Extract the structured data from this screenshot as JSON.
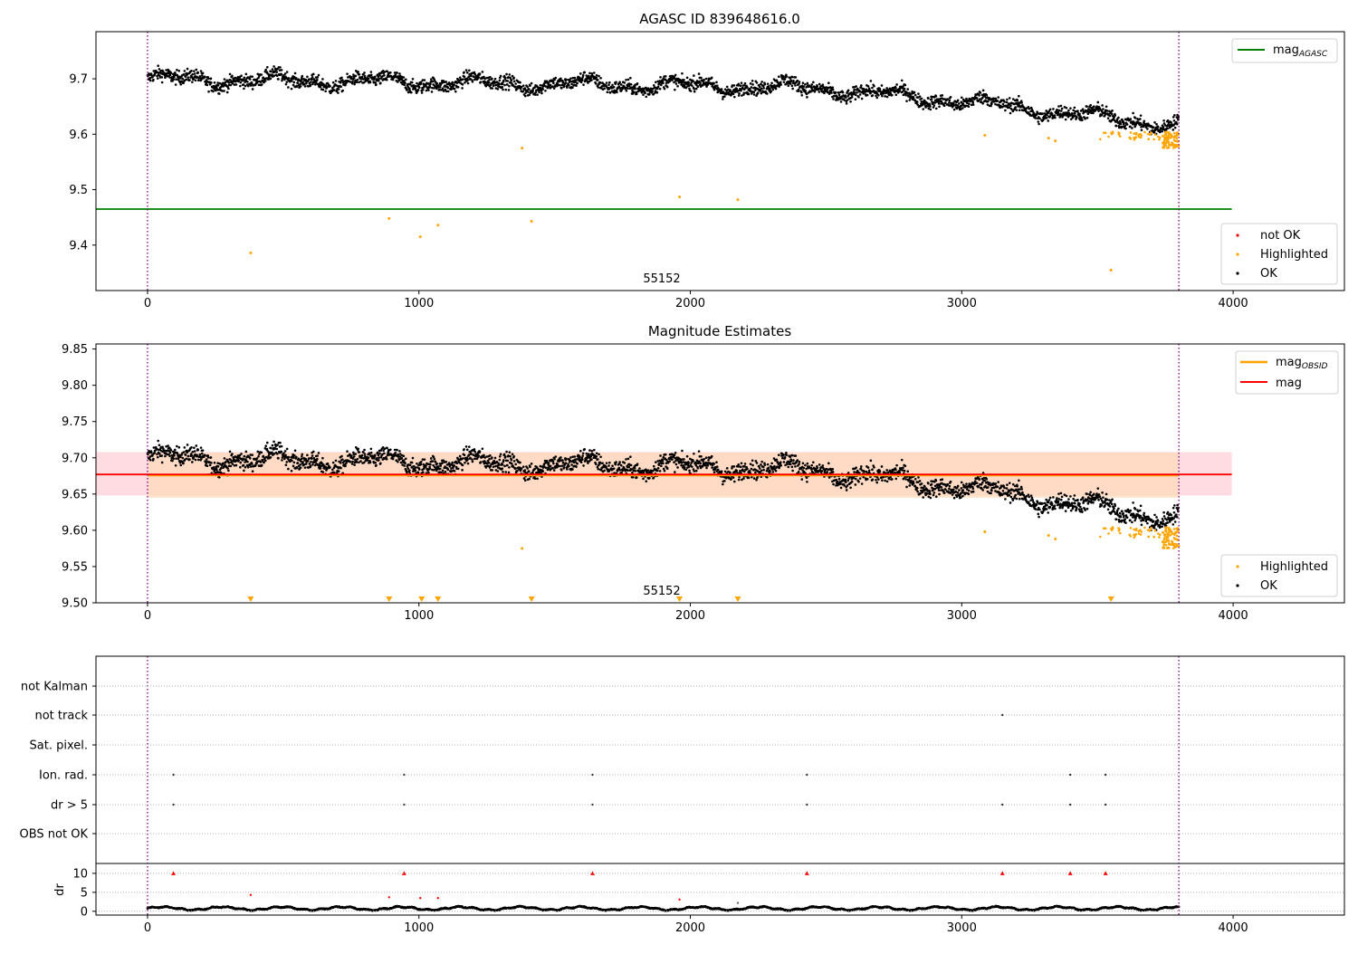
{
  "colors": {
    "ok": "#000000",
    "highlighted": "#FFA500",
    "not_ok": "#FF0000",
    "mag_agasc": "#008000",
    "mag_obsid": "#FFA500",
    "mag": "#FF0000",
    "band_outer": "#FFC0CB",
    "band_inner": "#FFDAB9",
    "obsid_boundary": "#800080",
    "grid": "#b0b0b0"
  },
  "chart_data": [
    {
      "type": "scatter",
      "title": "AGASC ID 839648616.0",
      "xlim": [
        -190,
        4410
      ],
      "ylim": [
        9.318,
        9.785
      ],
      "xticks": [
        0,
        1000,
        2000,
        3000,
        4000
      ],
      "yticks": [
        9.4,
        9.5,
        9.6,
        9.7
      ],
      "obsid_label": "55152",
      "obsid_boundaries": [
        0,
        3800
      ],
      "series": [
        {
          "name": "not OK",
          "values": []
        },
        {
          "name": "Highlighted",
          "points": [
            [
              380,
              9.386
            ],
            [
              890,
              9.448
            ],
            [
              1005,
              9.415
            ],
            [
              1070,
              9.436
            ],
            [
              1380,
              9.575
            ],
            [
              1415,
              9.443
            ],
            [
              1960,
              9.487
            ],
            [
              2175,
              9.482
            ],
            [
              3085,
              9.598
            ],
            [
              3320,
              9.593
            ],
            [
              3345,
              9.588
            ],
            [
              3550,
              9.355
            ]
          ]
        },
        {
          "name": "OK",
          "values": []
        }
      ],
      "hlines": [
        {
          "name": "mag_AGASC",
          "y": 9.465,
          "x": [
            -190,
            3995
          ]
        }
      ],
      "legend": [
        "not OK",
        "Highlighted",
        "OK"
      ],
      "legend_lines": [
        "mag_AGASC"
      ],
      "legend_placement": "top-right (lines), bottom-right (points)",
      "grid": false
    },
    {
      "type": "scatter",
      "title": "Magnitude Estimates",
      "xlim": [
        -190,
        4410
      ],
      "ylim": [
        9.5,
        9.857
      ],
      "xticks": [
        0,
        1000,
        2000,
        3000,
        4000
      ],
      "yticks": [
        9.5,
        9.55,
        9.6,
        9.65,
        9.7,
        9.75,
        9.8,
        9.85
      ],
      "obsid_label": "55152",
      "obsid_boundaries": [
        0,
        3800
      ],
      "bands": [
        {
          "name": "mag band",
          "x": [
            -190,
            3995
          ],
          "y": [
            9.648,
            9.708
          ]
        },
        {
          "name": "mag_OBSID band",
          "x": [
            0,
            3800
          ],
          "y": [
            9.645,
            9.707
          ]
        }
      ],
      "hlines": [
        {
          "name": "mag_OBSID",
          "y": 9.676,
          "x": [
            0,
            3800
          ]
        },
        {
          "name": "mag",
          "y": 9.677,
          "x": [
            -190,
            3995
          ]
        }
      ],
      "lower_limit_markers": {
        "name": "Highlighted below range",
        "x": [
          380,
          890,
          1010,
          1070,
          1415,
          1960,
          2175,
          3550
        ]
      },
      "series": [
        {
          "name": "Highlighted",
          "points": [
            [
              1380,
              9.575
            ],
            [
              3085,
              9.598
            ],
            [
              3320,
              9.593
            ],
            [
              3345,
              9.588
            ]
          ]
        },
        {
          "name": "OK",
          "values": []
        }
      ],
      "legend": [
        "Highlighted",
        "OK"
      ],
      "legend_lines": [
        "mag_OBSID",
        "mag"
      ],
      "grid": false
    },
    {
      "type": "scatter",
      "title": "",
      "xlim": [
        -190,
        4410
      ],
      "xticks": [
        0,
        1000,
        2000,
        3000,
        4000
      ],
      "flag_rows": [
        "not Kalman",
        "not track",
        "Sat. pixel.",
        "Ion. rad.",
        "dr > 5",
        "OBS not OK"
      ],
      "flags": {
        "not Kalman": [],
        "not track": [
          3150
        ],
        "Sat. pixel.": [],
        "Ion. rad.": [
          95,
          945,
          1640,
          2430,
          3400,
          3530
        ],
        "dr > 5": [
          95,
          945,
          1640,
          2430,
          3150,
          3400,
          3530
        ],
        "OBS not OK": []
      },
      "dr_panel": {
        "ylabel": "dr",
        "yticks": [
          0,
          5,
          10
        ],
        "ylim": [
          -1,
          12.6
        ],
        "clipped_at_10": [
          95,
          945,
          1640,
          2430,
          3150,
          3400,
          3530
        ],
        "outliers": [
          [
            380,
            4.3
          ],
          [
            890,
            3.7
          ],
          [
            1005,
            3.5
          ],
          [
            1070,
            3.5
          ],
          [
            1960,
            3.1
          ],
          [
            2175,
            2.2
          ]
        ],
        "baseline_range": [
          0.2,
          1.3
        ]
      },
      "obsid_boundaries": [
        0,
        3800
      ],
      "grid": true
    }
  ]
}
